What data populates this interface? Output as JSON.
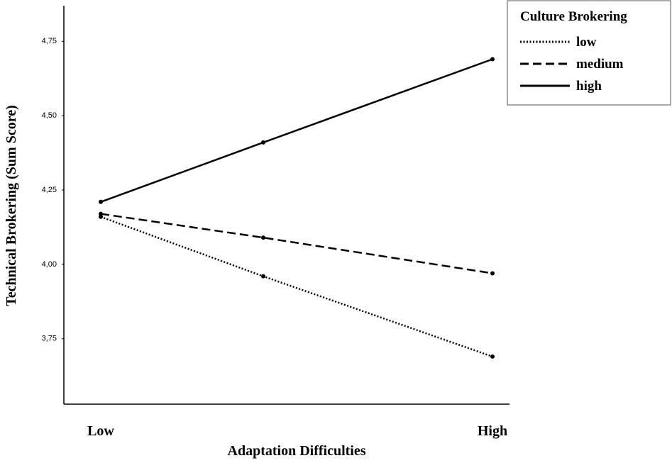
{
  "chart_data": {
    "type": "line",
    "x_label": "Adaptation Difficulties",
    "y_label": "Technical Brokering (Sum Score)",
    "categories": [
      "Low",
      null,
      "High"
    ],
    "series": [
      {
        "name": "low",
        "color": "#000000",
        "style": "dotted",
        "values": [
          4.16,
          3.96,
          3.69
        ]
      },
      {
        "name": "medium",
        "color": "#000000",
        "style": "dashed",
        "values": [
          4.17,
          4.09,
          3.97
        ]
      },
      {
        "name": "high",
        "color": "#000000",
        "style": "solid",
        "values": [
          4.21,
          4.41,
          4.69
        ]
      }
    ],
    "legend_title": "Culture Brokering",
    "legend": "top-right",
    "ylim": [
      3.53,
      4.87
    ],
    "yticks": [
      {
        "value": 3.75,
        "label": "3,75"
      },
      {
        "value": 4.0,
        "label": "4,00"
      },
      {
        "value": 4.25,
        "label": "4,25"
      },
      {
        "value": 4.5,
        "label": "4,50"
      },
      {
        "value": 4.75,
        "label": "4,75"
      }
    ]
  }
}
